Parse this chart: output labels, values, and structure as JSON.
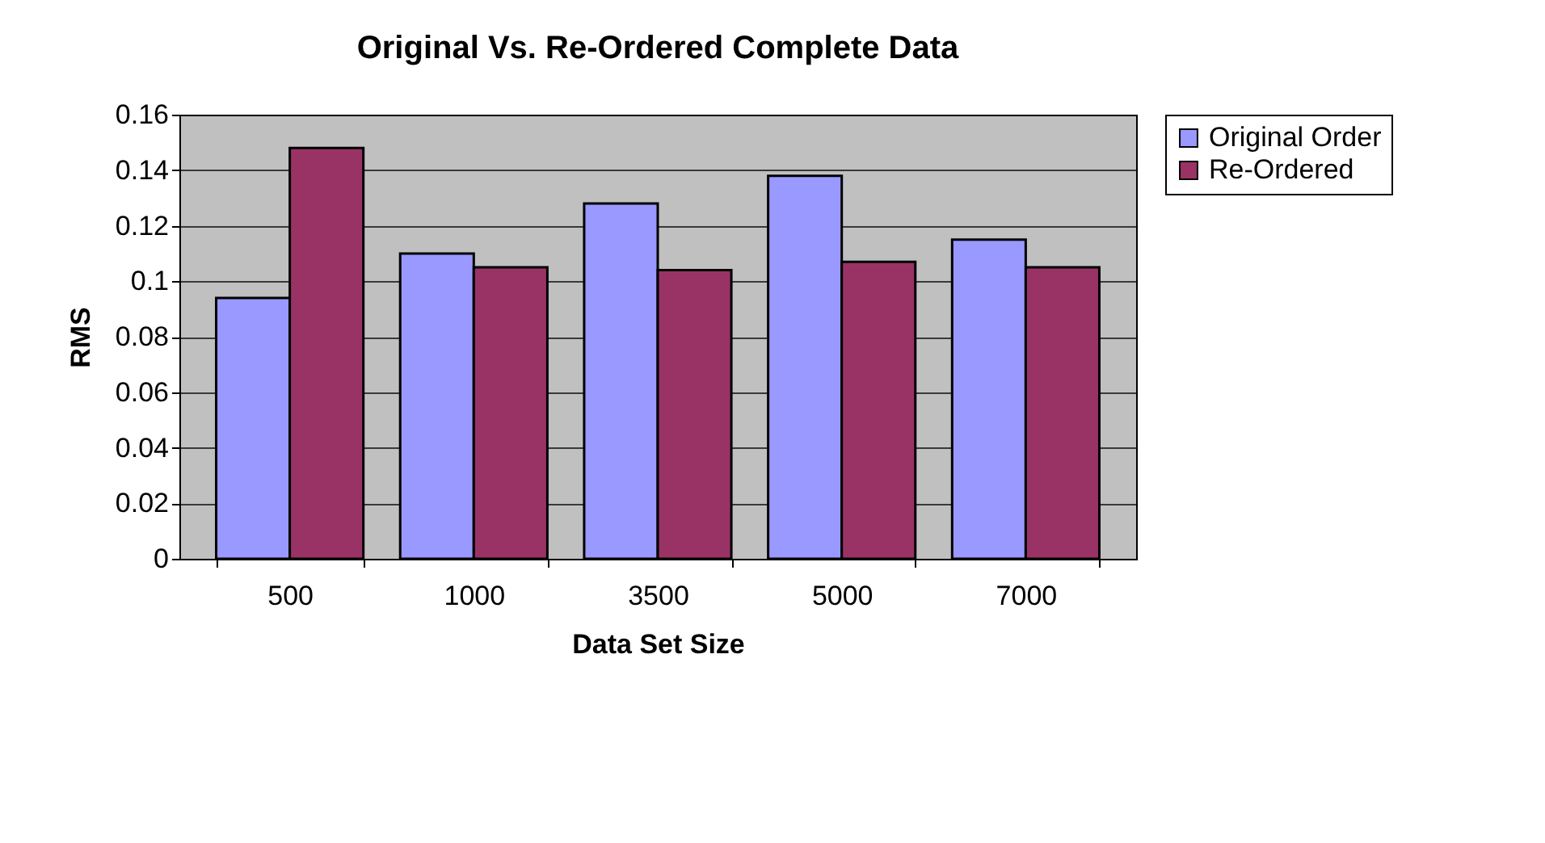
{
  "chart_data": {
    "type": "bar",
    "title": "Original Vs. Re-Ordered Complete Data",
    "xlabel": "Data Set Size",
    "ylabel": "RMS",
    "categories": [
      "500",
      "1000",
      "3500",
      "5000",
      "7000"
    ],
    "series": [
      {
        "name": "Original Order",
        "color": "#9999ff",
        "values": [
          0.094,
          0.11,
          0.128,
          0.138,
          0.115
        ]
      },
      {
        "name": "Re-Ordered",
        "color": "#993366",
        "values": [
          0.148,
          0.105,
          0.104,
          0.107,
          0.105
        ]
      }
    ],
    "ylim": [
      0,
      0.16
    ],
    "yticks": [
      0,
      0.02,
      0.04,
      0.06,
      0.08,
      {
        "value": 0.1,
        "label": "0.1"
      },
      0.12,
      0.14,
      0.16
    ],
    "grid": "y",
    "legend": "right"
  }
}
